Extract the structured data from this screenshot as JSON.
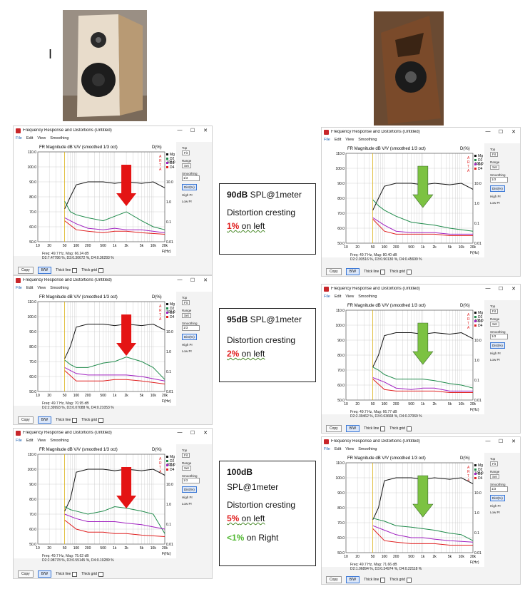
{
  "glyph_i": "I",
  "window": {
    "title": "Frequency Response and Distortions (Untitled)",
    "menu": [
      "File",
      "Edit",
      "View",
      "Smoothing"
    ],
    "win_min": "—",
    "win_max": "☐",
    "win_close": "✕"
  },
  "chart": {
    "header": "FR Magnitude dB V/V (smoothed 1/3 oct)",
    "d_label": "D(%)",
    "arta": [
      "A",
      "R",
      "T",
      "A"
    ],
    "legend": [
      "Mg",
      "D2",
      "D3",
      "D4"
    ],
    "legend_colors": {
      "Mg": "#111111",
      "D2": "#1e8a4a",
      "D3": "#a020c0",
      "D4": "#e02020"
    },
    "xlabel": "F(Hz)",
    "xticks": [
      "10",
      "20",
      "50",
      "100",
      "200",
      "500",
      "1k",
      "2k",
      "5k",
      "10k",
      "20k"
    ],
    "yticks_left": [
      "110.0",
      "100.0",
      "90.0",
      "80.0",
      "70.0",
      "60.0",
      "50.0"
    ],
    "yticks_right": [
      "100.0",
      "10.0",
      "1.0",
      "0.1",
      "0.01"
    ]
  },
  "side": {
    "top_label": "Top",
    "fit_label": "Fit",
    "range_label": "Range",
    "set_label": "Set",
    "smoothing_label": "Smoothing",
    "smoothing_value": "1/3",
    "dist_button": "Dist(%)",
    "highpr_label": "High Pr",
    "lowpr_label": "Low Pr"
  },
  "bottom": {
    "copy": "Copy",
    "bw": "B/W",
    "thick_line": "Thick line",
    "thick_grid": "Thick grid"
  },
  "panels": [
    {
      "freq": "Freq: 49.7 Hz, Mag: 66.24 dB",
      "dist": "D2:7.47786 %, D3:0.30672 %, D4:0.36293 %"
    },
    {
      "freq": "Freq: 49.7 Hz, Mag: 80.40 dB",
      "dist": "D2:2.93516 %, D3:0.90130 %, D4:0.45699 %"
    },
    {
      "freq": "Freq: 49.7 Hz, Mag: 70.95 dB",
      "dist": "D2:2.39993 %, D3:0.07088 %, D4:0.21053 %"
    },
    {
      "freq": "Freq: 49.7 Hz, Mag: 66.77 dB",
      "dist": "D2:2.39462 %, D3:0.63668 %, D4:0.37069 %"
    },
    {
      "freq": "Freq: 49.7 Hz, Mag: 75.62 dB",
      "dist": "D2:2.98778 %, D3:0.55145 %, D4:0.19289 %"
    },
    {
      "freq": "Freq: 49.7 Hz, Mag: 71.66 dB",
      "dist": "D2:1.06894 %, D3:0.34974 %, D4:0.22118 %"
    }
  ],
  "notes": [
    {
      "spl": "90dB",
      "spl_rest": " SPL@1meter",
      "line2": "Distortion cresting",
      "pct": "1%",
      "pct_rest": " on left"
    },
    {
      "spl": "95dB",
      "spl_rest": " SPL@1meter",
      "line2": "Distortion cresting",
      "pct": "2%",
      "pct_rest": " on left"
    },
    {
      "spl": "100dB",
      "spl_rest": "SPL@1meter",
      "line2": "Distortion cresting",
      "pct": "5%",
      "pct_rest": " on left",
      "extra_pct": "<1%",
      "extra_rest": " on Right"
    }
  ],
  "colors": {
    "arrow_red": "#e41414",
    "arrow_green": "#7cc242",
    "grid": "#c8c8c8",
    "marker": "#e0b000"
  }
}
